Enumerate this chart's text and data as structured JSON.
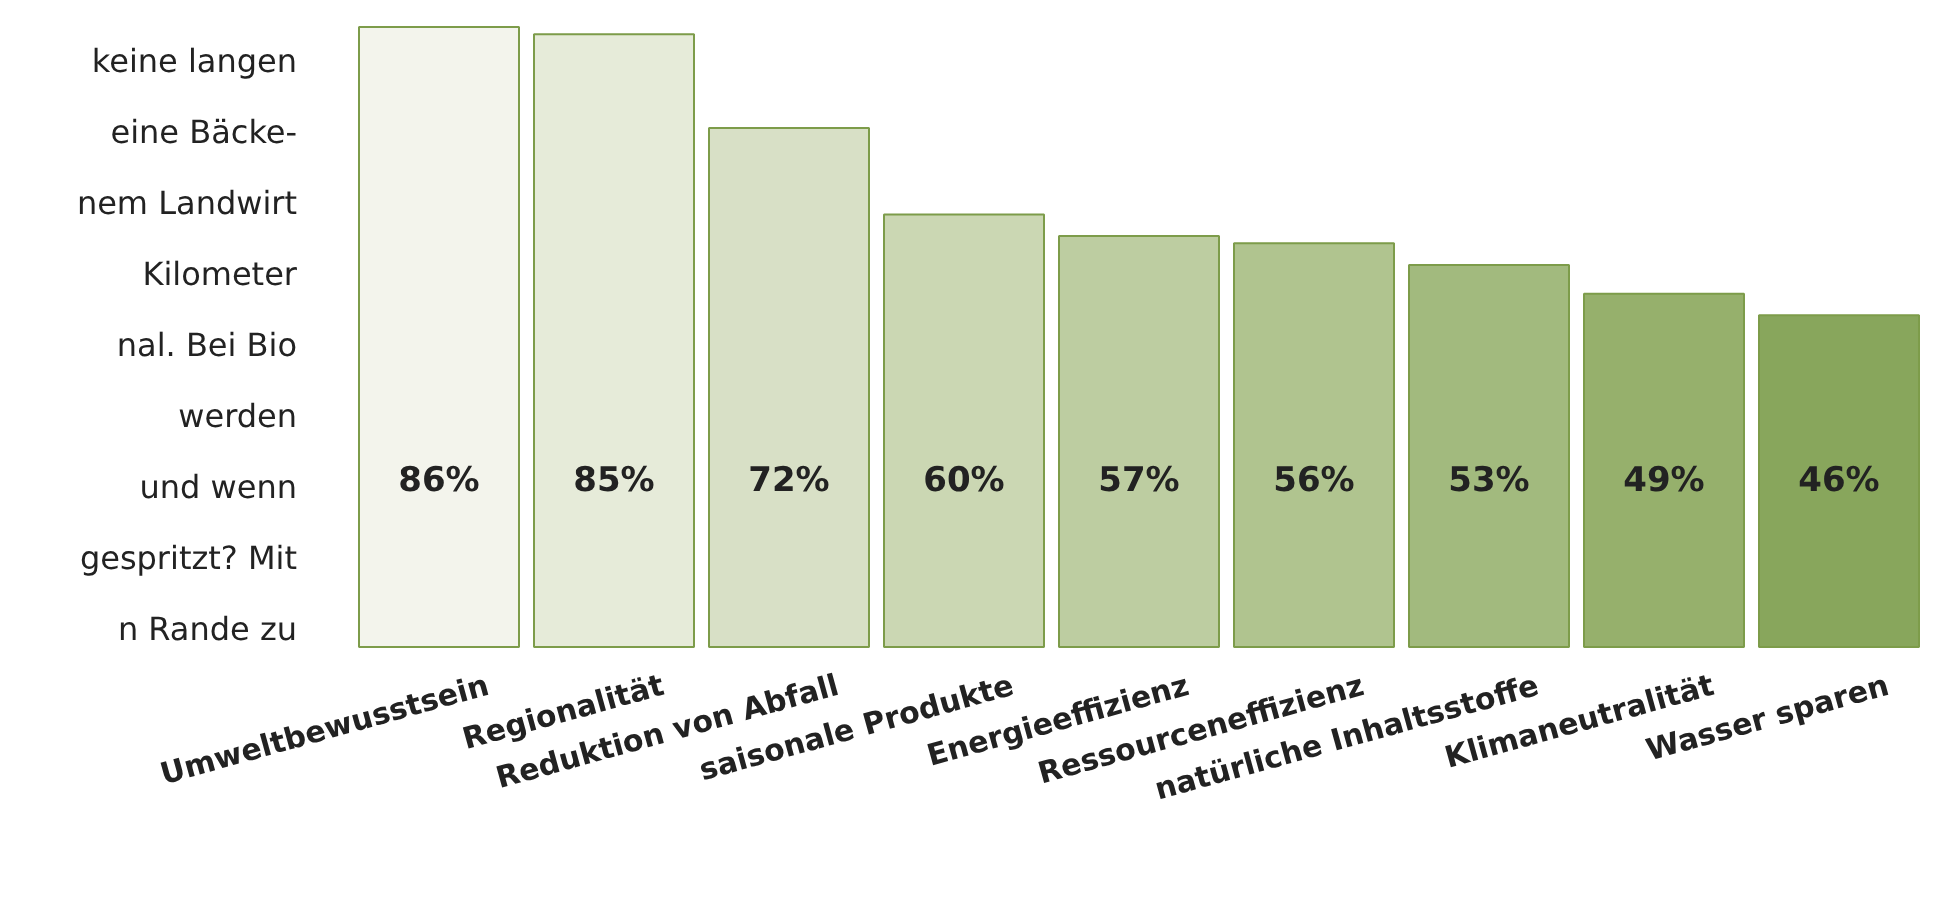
{
  "chart_data": {
    "type": "bar",
    "categories": [
      "Umweltbewusstsein",
      "Regionalität",
      "Reduktion von Abfall",
      "saisonale Produkte",
      "Energieeffizienz",
      "Ressourceneffizienz",
      "natürliche Inhaltsstoffe",
      "Klimaneutralität",
      "Wasser sparen"
    ],
    "values": [
      86,
      85,
      72,
      60,
      57,
      56,
      53,
      49,
      46
    ],
    "colors": [
      "#f3f4ec",
      "#e6ebd9",
      "#d8e0c6",
      "#cbd7b3",
      "#bdcda1",
      "#b0c48f",
      "#a2ba7e",
      "#96b06c",
      "#88a65c"
    ],
    "value_labels": [
      "86%",
      "85%",
      "72%",
      "60%",
      "57%",
      "56%",
      "53%",
      "49%",
      "46%"
    ],
    "annotations": [
      "keine langen",
      "eine Bäcke-",
      "nem Landwirt",
      "Kilometer",
      "nal. Bei Bio",
      "werden",
      "und wenn",
      "gespritzt? Mit",
      "n Rande zu"
    ],
    "grid": false
  }
}
